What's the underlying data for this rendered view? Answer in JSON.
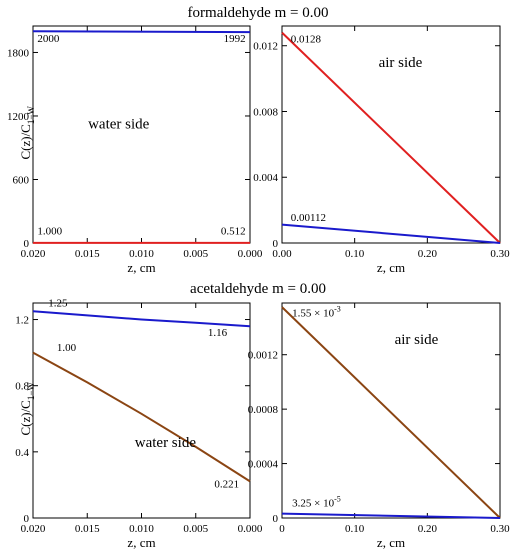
{
  "titles": {
    "top": "formaldehyde m = 0.00",
    "bottom": "acetaldehyde m = 0.00"
  },
  "ylabel": {
    "main": "C(z)/C",
    "sub": "1−W"
  },
  "colors": {
    "blue": "#1a1acc",
    "red": "#e02020",
    "brown": "#8b4513",
    "axis": "#000000"
  },
  "chart_data": [
    {
      "id": "formaldehyde-water",
      "type": "line",
      "xlabel": "z, cm",
      "xlim": [
        0.02,
        0.0
      ],
      "ylim": [
        0,
        2050
      ],
      "xticks": [
        0.02,
        0.015,
        0.01,
        0.005,
        0.0
      ],
      "xtick_labels": [
        "0.020",
        "0.015",
        "0.010",
        "0.005",
        "0.000"
      ],
      "yticks": [
        0,
        600,
        1200,
        1800
      ],
      "ytick_labels": [
        "0",
        "600",
        "1200",
        "1800"
      ],
      "series": [
        {
          "color": "blue",
          "x": [
            0.02,
            0.0
          ],
          "y": [
            2000,
            1992
          ]
        },
        {
          "color": "red",
          "x": [
            0.02,
            0.0
          ],
          "y": [
            1.0,
            0.512
          ]
        }
      ],
      "annotations": [
        {
          "text": "2000",
          "x": 0.0196,
          "y": 1900,
          "anchor": "start"
        },
        {
          "text": "1992",
          "x": 0.0004,
          "y": 1900,
          "anchor": "end"
        },
        {
          "text": "water side",
          "x": 0.0121,
          "y": 1080,
          "anchor": "middle",
          "size": 15
        },
        {
          "text": "1.000",
          "x": 0.0196,
          "y": 80,
          "anchor": "start"
        },
        {
          "text": "0.512",
          "x": 0.0004,
          "y": 80,
          "anchor": "end"
        }
      ]
    },
    {
      "id": "formaldehyde-air",
      "type": "line",
      "xlabel": "z, cm",
      "xlim": [
        0,
        0.3
      ],
      "ylim": [
        0,
        0.0132
      ],
      "xticks": [
        0,
        0.1,
        0.2,
        0.3
      ],
      "xtick_labels": [
        "0.00",
        "0.10",
        "0.20",
        "0.30"
      ],
      "yticks": [
        0,
        0.004,
        0.008,
        0.012
      ],
      "ytick_labels": [
        "0",
        "0.004",
        "0.008",
        "0.012"
      ],
      "series": [
        {
          "color": "red",
          "x": [
            0,
            0.3
          ],
          "y": [
            0.0128,
            0
          ]
        },
        {
          "color": "blue",
          "x": [
            0,
            0.3
          ],
          "y": [
            0.00112,
            0
          ]
        }
      ],
      "annotations": [
        {
          "text": "0.0128",
          "x": 0.012,
          "y": 0.0122,
          "anchor": "start"
        },
        {
          "text": "air side",
          "x": 0.163,
          "y": 0.0107,
          "anchor": "middle",
          "size": 15
        },
        {
          "text": "0.00112",
          "x": 0.012,
          "y": 0.00135,
          "anchor": "start"
        }
      ]
    },
    {
      "id": "acetaldehyde-water",
      "type": "line",
      "xlabel": "z, cm",
      "xlim": [
        0.02,
        0.0
      ],
      "ylim": [
        0,
        1.3
      ],
      "xticks": [
        0.02,
        0.015,
        0.01,
        0.005,
        0.0
      ],
      "xtick_labels": [
        "0.020",
        "0.015",
        "0.010",
        "0.005",
        "0.000"
      ],
      "yticks": [
        0,
        0.4,
        0.8,
        1.2
      ],
      "ytick_labels": [
        "0",
        "0.4",
        "0.8",
        "1.2"
      ],
      "series": [
        {
          "color": "blue",
          "x": [
            0.02,
            0.015,
            0.01,
            0.005,
            0.0
          ],
          "y": [
            1.25,
            1.225,
            1.2,
            1.18,
            1.16
          ]
        },
        {
          "color": "brown",
          "x": [
            0.02,
            0.015,
            0.01,
            0.005,
            0.0
          ],
          "y": [
            1.0,
            0.82,
            0.63,
            0.43,
            0.221
          ]
        }
      ],
      "annotations": [
        {
          "text": "1.25",
          "x": 0.0186,
          "y": 1.28,
          "anchor": "start"
        },
        {
          "text": "1.16",
          "x": 0.003,
          "y": 1.1,
          "anchor": "middle"
        },
        {
          "text": "1.00",
          "x": 0.0178,
          "y": 1.01,
          "anchor": "start"
        },
        {
          "text": "water side",
          "x": 0.0078,
          "y": 0.43,
          "anchor": "middle",
          "size": 15
        },
        {
          "text": "0.221",
          "x": 0.001,
          "y": 0.185,
          "anchor": "end"
        }
      ]
    },
    {
      "id": "acetaldehyde-air",
      "type": "line",
      "xlabel": "z, cm",
      "xlim": [
        0,
        0.3
      ],
      "ylim": [
        0,
        0.00158
      ],
      "xticks": [
        0,
        0.1,
        0.2,
        0.3
      ],
      "xtick_labels": [
        "0",
        "0.10",
        "0.20",
        "0.30"
      ],
      "yticks": [
        0,
        0.0004,
        0.0008,
        0.0012
      ],
      "ytick_labels": [
        "0",
        "0.0004",
        "0.0008",
        "0.0012"
      ],
      "series": [
        {
          "color": "brown",
          "x": [
            0,
            0.3
          ],
          "y": [
            0.00155,
            0
          ]
        },
        {
          "color": "blue",
          "x": [
            0,
            0.3
          ],
          "y": [
            3.25e-05,
            0
          ]
        }
      ],
      "annotations": [
        {
          "text": "1.55 × 10",
          "sup": "-3",
          "x": 0.014,
          "y": 0.00148,
          "anchor": "start"
        },
        {
          "text": "air side",
          "x": 0.185,
          "y": 0.00128,
          "anchor": "middle",
          "size": 15
        },
        {
          "text": "3.25 × 10",
          "sup": "-5",
          "x": 0.014,
          "y": 8.5e-05,
          "anchor": "start"
        }
      ]
    }
  ]
}
